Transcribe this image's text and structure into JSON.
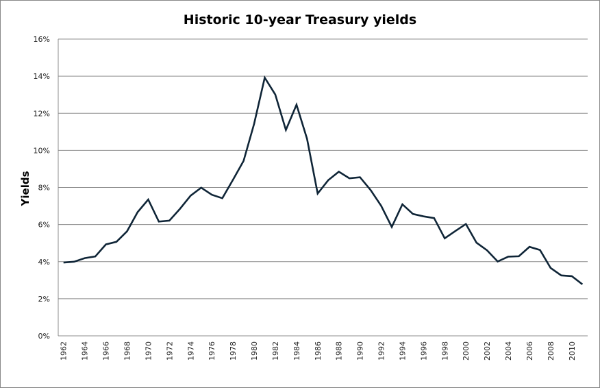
{
  "chart_data": {
    "type": "line",
    "title": "Historic 10-year Treasury yields",
    "xlabel": "",
    "ylabel": "Yields",
    "ylim": [
      0,
      16
    ],
    "y_ticks": [
      "0%",
      "2%",
      "4%",
      "6%",
      "8%",
      "10%",
      "12%",
      "14%",
      "16%"
    ],
    "y_tick_values": [
      0,
      2,
      4,
      6,
      8,
      10,
      12,
      14,
      16
    ],
    "grid": true,
    "legend": "none",
    "x": [
      1962,
      1963,
      1964,
      1965,
      1966,
      1967,
      1968,
      1969,
      1970,
      1971,
      1972,
      1973,
      1974,
      1975,
      1976,
      1977,
      1978,
      1979,
      1980,
      1981,
      1982,
      1983,
      1984,
      1985,
      1986,
      1987,
      1988,
      1989,
      1990,
      1991,
      1992,
      1993,
      1994,
      1995,
      1996,
      1997,
      1998,
      1999,
      2000,
      2001,
      2002,
      2003,
      2004,
      2005,
      2006,
      2007,
      2008,
      2009,
      2010,
      2011
    ],
    "x_tick_labels": [
      "1962",
      "1964",
      "1966",
      "1968",
      "1970",
      "1972",
      "1974",
      "1976",
      "1978",
      "1980",
      "1982",
      "1984",
      "1986",
      "1988",
      "1990",
      "1992",
      "1994",
      "1996",
      "1998",
      "2000",
      "2002",
      "2004",
      "2006",
      "2008",
      "2010"
    ],
    "series": [
      {
        "name": "10-year Treasury yield",
        "color": "#0f2537",
        "values": [
          3.95,
          4.0,
          4.19,
          4.28,
          4.93,
          5.07,
          5.64,
          6.67,
          7.35,
          6.16,
          6.21,
          6.85,
          7.56,
          7.99,
          7.61,
          7.42,
          8.41,
          9.43,
          11.43,
          13.92,
          13.01,
          11.1,
          12.46,
          10.62,
          7.67,
          8.39,
          8.85,
          8.49,
          8.55,
          7.86,
          7.01,
          5.87,
          7.09,
          6.57,
          6.44,
          6.35,
          5.26,
          5.65,
          6.03,
          5.02,
          4.61,
          4.01,
          4.27,
          4.29,
          4.8,
          4.63,
          3.66,
          3.26,
          3.22,
          2.78
        ]
      }
    ]
  }
}
